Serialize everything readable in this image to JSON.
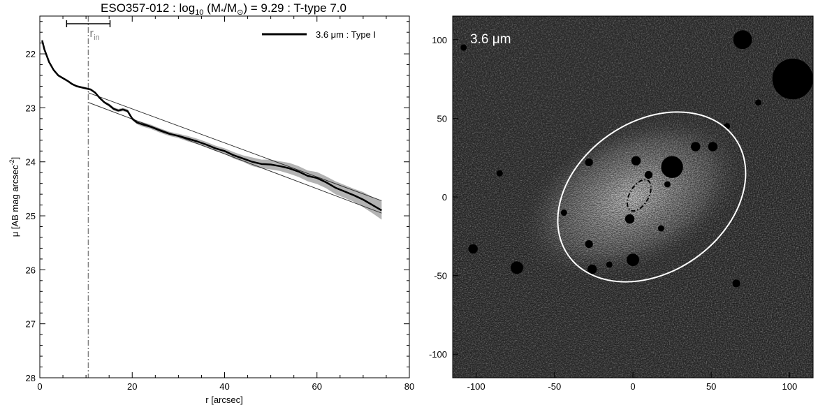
{
  "chart_data": [
    {
      "type": "line",
      "title": {
        "prefix": "ESO357-012 : log",
        "sub": "10",
        "middle": " (M",
        "star": "*",
        "slash": "/M",
        "sun": "⊙",
        "suffix": ") = 9.29 : T-type 7.0"
      },
      "xlabel": "r [arcsec]",
      "ylabel": {
        "main": "μ [AB mag arcsec",
        "sup": "-2",
        "close": "]"
      },
      "xlim": [
        0,
        80
      ],
      "ylim": [
        28,
        21.3
      ],
      "y_inverted": true,
      "xticks": [
        "0",
        "20",
        "40",
        "60",
        "80"
      ],
      "yticks": [
        "22",
        "23",
        "24",
        "25",
        "26",
        "27",
        "28"
      ],
      "grid": false,
      "legend": {
        "placement": "top-right",
        "label": "3.6 μm : Type I"
      },
      "r_in": {
        "label": "r",
        "sub": "in",
        "x": 10.5,
        "bar": [
          5.8,
          15.2
        ]
      },
      "series": [
        {
          "name": "3.6 μm : Type I",
          "x": [
            0.5,
            1,
            2,
            3,
            4,
            5,
            6,
            7,
            8,
            9,
            10,
            11,
            12,
            13,
            14,
            15,
            16,
            17,
            18,
            19,
            20,
            21,
            22,
            24,
            26,
            28,
            30,
            32,
            34,
            36,
            38,
            40,
            42,
            44,
            46,
            48,
            50,
            52,
            54,
            56,
            58,
            60,
            62,
            64,
            66,
            68,
            70,
            72,
            74
          ],
          "y": [
            21.75,
            21.92,
            22.15,
            22.3,
            22.4,
            22.45,
            22.5,
            22.56,
            22.6,
            22.62,
            22.64,
            22.66,
            22.72,
            22.82,
            22.9,
            22.95,
            23.02,
            23.05,
            23.03,
            23.06,
            23.2,
            23.27,
            23.3,
            23.35,
            23.42,
            23.48,
            23.52,
            23.57,
            23.62,
            23.68,
            23.75,
            23.8,
            23.88,
            23.94,
            24.0,
            24.04,
            24.05,
            24.08,
            24.12,
            24.18,
            24.26,
            24.3,
            24.38,
            24.48,
            24.55,
            24.62,
            24.7,
            24.8,
            24.9
          ],
          "band": [
            0.02,
            0.02,
            0.02,
            0.02,
            0.02,
            0.02,
            0.02,
            0.02,
            0.02,
            0.02,
            0.02,
            0.02,
            0.02,
            0.02,
            0.02,
            0.03,
            0.03,
            0.03,
            0.03,
            0.03,
            0.03,
            0.03,
            0.04,
            0.04,
            0.04,
            0.04,
            0.04,
            0.05,
            0.05,
            0.05,
            0.05,
            0.05,
            0.06,
            0.06,
            0.08,
            0.08,
            0.09,
            0.09,
            0.1,
            0.1,
            0.1,
            0.11,
            0.11,
            0.12,
            0.12,
            0.12,
            0.14,
            0.15,
            0.17
          ]
        }
      ],
      "fit_lines": [
        {
          "x": [
            10.5,
            74
          ],
          "y": [
            22.72,
            24.72
          ]
        },
        {
          "x": [
            10.5,
            74
          ],
          "y": [
            22.9,
            24.95
          ]
        }
      ],
      "colors": {
        "profile": "#000000",
        "band": "#b3b3b3",
        "fit": "#333333",
        "r_in": "#808080"
      }
    },
    {
      "type": "heatmap",
      "label": "3.6 μm",
      "xlim": [
        -115,
        115
      ],
      "ylim": [
        -115,
        115
      ],
      "xticks": [
        "-100",
        "-50",
        "0",
        "50",
        "100"
      ],
      "yticks": [
        "100",
        "50",
        "0",
        "-50",
        "-100"
      ],
      "outer_ellipse": {
        "center": [
          12,
          0
        ],
        "semi_major": 65,
        "semi_minor": 48,
        "angle_deg": 35,
        "style": "solid",
        "color": "#ffffff"
      },
      "inner_ellipse": {
        "center": [
          4,
          1
        ],
        "semi_major": 11,
        "semi_minor": 6,
        "angle_deg": 60,
        "style": "dashed",
        "color": "#000000"
      },
      "masks": [
        {
          "c": [
            102,
            75
          ],
          "r": 13
        },
        {
          "c": [
            70,
            100
          ],
          "r": 6
        },
        {
          "c": [
            25,
            19
          ],
          "r": 7
        },
        {
          "c": [
            40,
            32
          ],
          "r": 3
        },
        {
          "c": [
            51,
            32
          ],
          "r": 3
        },
        {
          "c": [
            2,
            23
          ],
          "r": 3
        },
        {
          "c": [
            10,
            14
          ],
          "r": 2.5
        },
        {
          "c": [
            -2,
            -14
          ],
          "r": 3
        },
        {
          "c": [
            0,
            -40
          ],
          "r": 4
        },
        {
          "c": [
            -26,
            -46
          ],
          "r": 3
        },
        {
          "c": [
            -15,
            -43
          ],
          "r": 2
        },
        {
          "c": [
            -28,
            -30
          ],
          "r": 2.5
        },
        {
          "c": [
            -28,
            22
          ],
          "r": 2.5
        },
        {
          "c": [
            -74,
            -45
          ],
          "r": 4
        },
        {
          "c": [
            -102,
            -33
          ],
          "r": 3
        },
        {
          "c": [
            -44,
            -10
          ],
          "r": 2
        },
        {
          "c": [
            22,
            8
          ],
          "r": 2
        },
        {
          "c": [
            18,
            -20
          ],
          "r": 2
        },
        {
          "c": [
            66,
            -55
          ],
          "r": 2.5
        },
        {
          "c": [
            -85,
            15
          ],
          "r": 2
        },
        {
          "c": [
            80,
            60
          ],
          "r": 2
        },
        {
          "c": [
            -108,
            95
          ],
          "r": 2
        },
        {
          "c": [
            60,
            45
          ],
          "r": 2
        }
      ]
    }
  ]
}
